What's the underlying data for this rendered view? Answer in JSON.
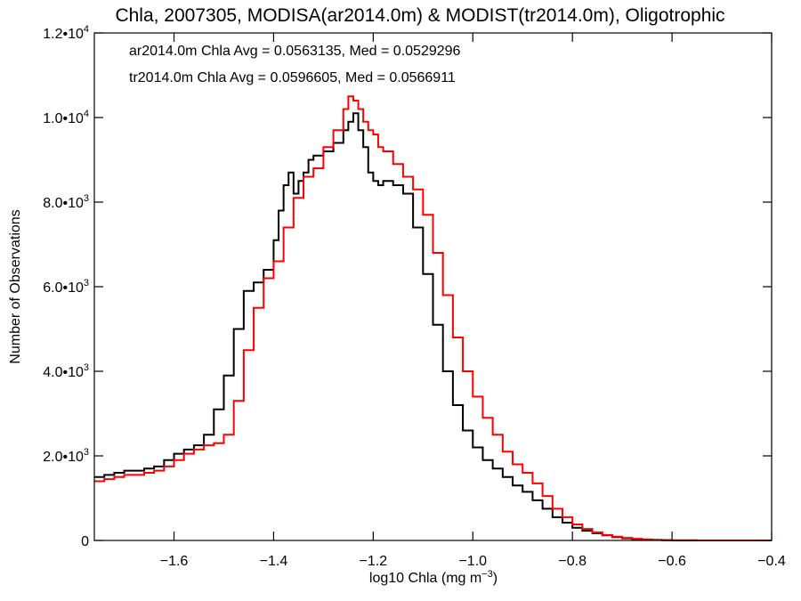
{
  "chart_data": {
    "type": "line",
    "title": "Chla, 2007305, MODISA(ar2014.0m) & MODIST(tr2014.0m), Oligotrophic",
    "xlabel": {
      "main": "log10 Chla (mg m",
      "sup": "−3",
      "close": ")"
    },
    "ylabel": "Number of Observations",
    "xlim": [
      -1.76,
      -0.4
    ],
    "ylim": [
      0,
      12000
    ],
    "grid": false,
    "x_ticks": [
      {
        "value": -1.6,
        "label": "−1.6"
      },
      {
        "value": -1.4,
        "label": "−1.4"
      },
      {
        "value": -1.2,
        "label": "−1.2"
      },
      {
        "value": -1.0,
        "label": "−1.0"
      },
      {
        "value": -0.8,
        "label": "−0.8"
      },
      {
        "value": -0.6,
        "label": "−0.6"
      },
      {
        "value": -0.4,
        "label": "−0.4"
      }
    ],
    "y_ticks": [
      {
        "value": 0,
        "mantissa": "0",
        "exp": ""
      },
      {
        "value": 2000,
        "mantissa": "2.0•10",
        "exp": "3"
      },
      {
        "value": 4000,
        "mantissa": "4.0•10",
        "exp": "3"
      },
      {
        "value": 6000,
        "mantissa": "6.0•10",
        "exp": "3"
      },
      {
        "value": 8000,
        "mantissa": "8.0•10",
        "exp": "3"
      },
      {
        "value": 10000,
        "mantissa": "1.0•10",
        "exp": "4"
      },
      {
        "value": 12000,
        "mantissa": "1.2•10",
        "exp": "4"
      }
    ],
    "annotations": [
      {
        "text": "ar2014.0m Chla Avg = 0.0563135, Med = 0.0529296",
        "color": "#000000"
      },
      {
        "text": "tr2014.0m Chla Avg = 0.0596605, Med = 0.0566911",
        "color": "#ff0000"
      }
    ],
    "series": [
      {
        "color": "#000000",
        "x": [
          -1.76,
          -1.74,
          -1.72,
          -1.7,
          -1.68,
          -1.66,
          -1.64,
          -1.62,
          -1.6,
          -1.58,
          -1.56,
          -1.54,
          -1.52,
          -1.5,
          -1.48,
          -1.46,
          -1.44,
          -1.42,
          -1.4,
          -1.39,
          -1.38,
          -1.37,
          -1.36,
          -1.35,
          -1.34,
          -1.33,
          -1.32,
          -1.3,
          -1.28,
          -1.26,
          -1.25,
          -1.24,
          -1.23,
          -1.22,
          -1.21,
          -1.2,
          -1.19,
          -1.18,
          -1.16,
          -1.14,
          -1.12,
          -1.1,
          -1.08,
          -1.06,
          -1.04,
          -1.02,
          -1.0,
          -0.98,
          -0.96,
          -0.94,
          -0.92,
          -0.9,
          -0.88,
          -0.86,
          -0.84,
          -0.82,
          -0.8,
          -0.78,
          -0.76,
          -0.74,
          -0.72,
          -0.7,
          -0.68,
          -0.66,
          -0.64,
          -0.62,
          -0.6,
          -0.55,
          -0.5,
          -0.45,
          -0.4
        ],
        "values": [
          1500,
          1550,
          1600,
          1650,
          1650,
          1700,
          1750,
          1900,
          2050,
          2150,
          2250,
          2500,
          3100,
          3900,
          5000,
          5900,
          6100,
          6400,
          7100,
          7800,
          8400,
          8700,
          8200,
          8500,
          8700,
          9000,
          9100,
          9200,
          9400,
          9700,
          9900,
          10100,
          9700,
          9300,
          8700,
          8500,
          8400,
          8500,
          8400,
          8200,
          7400,
          6300,
          5100,
          4000,
          3200,
          2600,
          2200,
          1900,
          1700,
          1500,
          1300,
          1150,
          950,
          750,
          550,
          420,
          300,
          230,
          170,
          120,
          80,
          50,
          30,
          20,
          10,
          5,
          0,
          0,
          0,
          0,
          0
        ]
      },
      {
        "color": "#ff0000",
        "x": [
          -1.76,
          -1.74,
          -1.72,
          -1.7,
          -1.68,
          -1.66,
          -1.64,
          -1.62,
          -1.6,
          -1.58,
          -1.56,
          -1.54,
          -1.52,
          -1.5,
          -1.48,
          -1.46,
          -1.44,
          -1.42,
          -1.4,
          -1.38,
          -1.36,
          -1.34,
          -1.32,
          -1.3,
          -1.28,
          -1.26,
          -1.25,
          -1.24,
          -1.23,
          -1.22,
          -1.21,
          -1.2,
          -1.19,
          -1.18,
          -1.16,
          -1.14,
          -1.12,
          -1.1,
          -1.08,
          -1.06,
          -1.04,
          -1.02,
          -1.0,
          -0.98,
          -0.96,
          -0.94,
          -0.92,
          -0.9,
          -0.88,
          -0.86,
          -0.84,
          -0.82,
          -0.8,
          -0.78,
          -0.76,
          -0.74,
          -0.72,
          -0.7,
          -0.68,
          -0.66,
          -0.64,
          -0.62,
          -0.6,
          -0.55,
          -0.5,
          -0.45,
          -0.4
        ],
        "values": [
          1400,
          1450,
          1500,
          1550,
          1550,
          1600,
          1650,
          1750,
          1900,
          2050,
          2150,
          2250,
          2300,
          2500,
          3300,
          4500,
          5500,
          6200,
          6600,
          7400,
          8100,
          8600,
          8800,
          9300,
          9700,
          10200,
          10500,
          10400,
          10200,
          9900,
          9700,
          9600,
          9300,
          9200,
          8900,
          8600,
          8300,
          7700,
          6800,
          5800,
          4800,
          4000,
          3400,
          2900,
          2500,
          2100,
          1800,
          1600,
          1350,
          1050,
          750,
          550,
          380,
          270,
          190,
          130,
          90,
          60,
          40,
          25,
          15,
          10,
          5,
          0,
          0,
          0,
          0
        ]
      }
    ]
  }
}
